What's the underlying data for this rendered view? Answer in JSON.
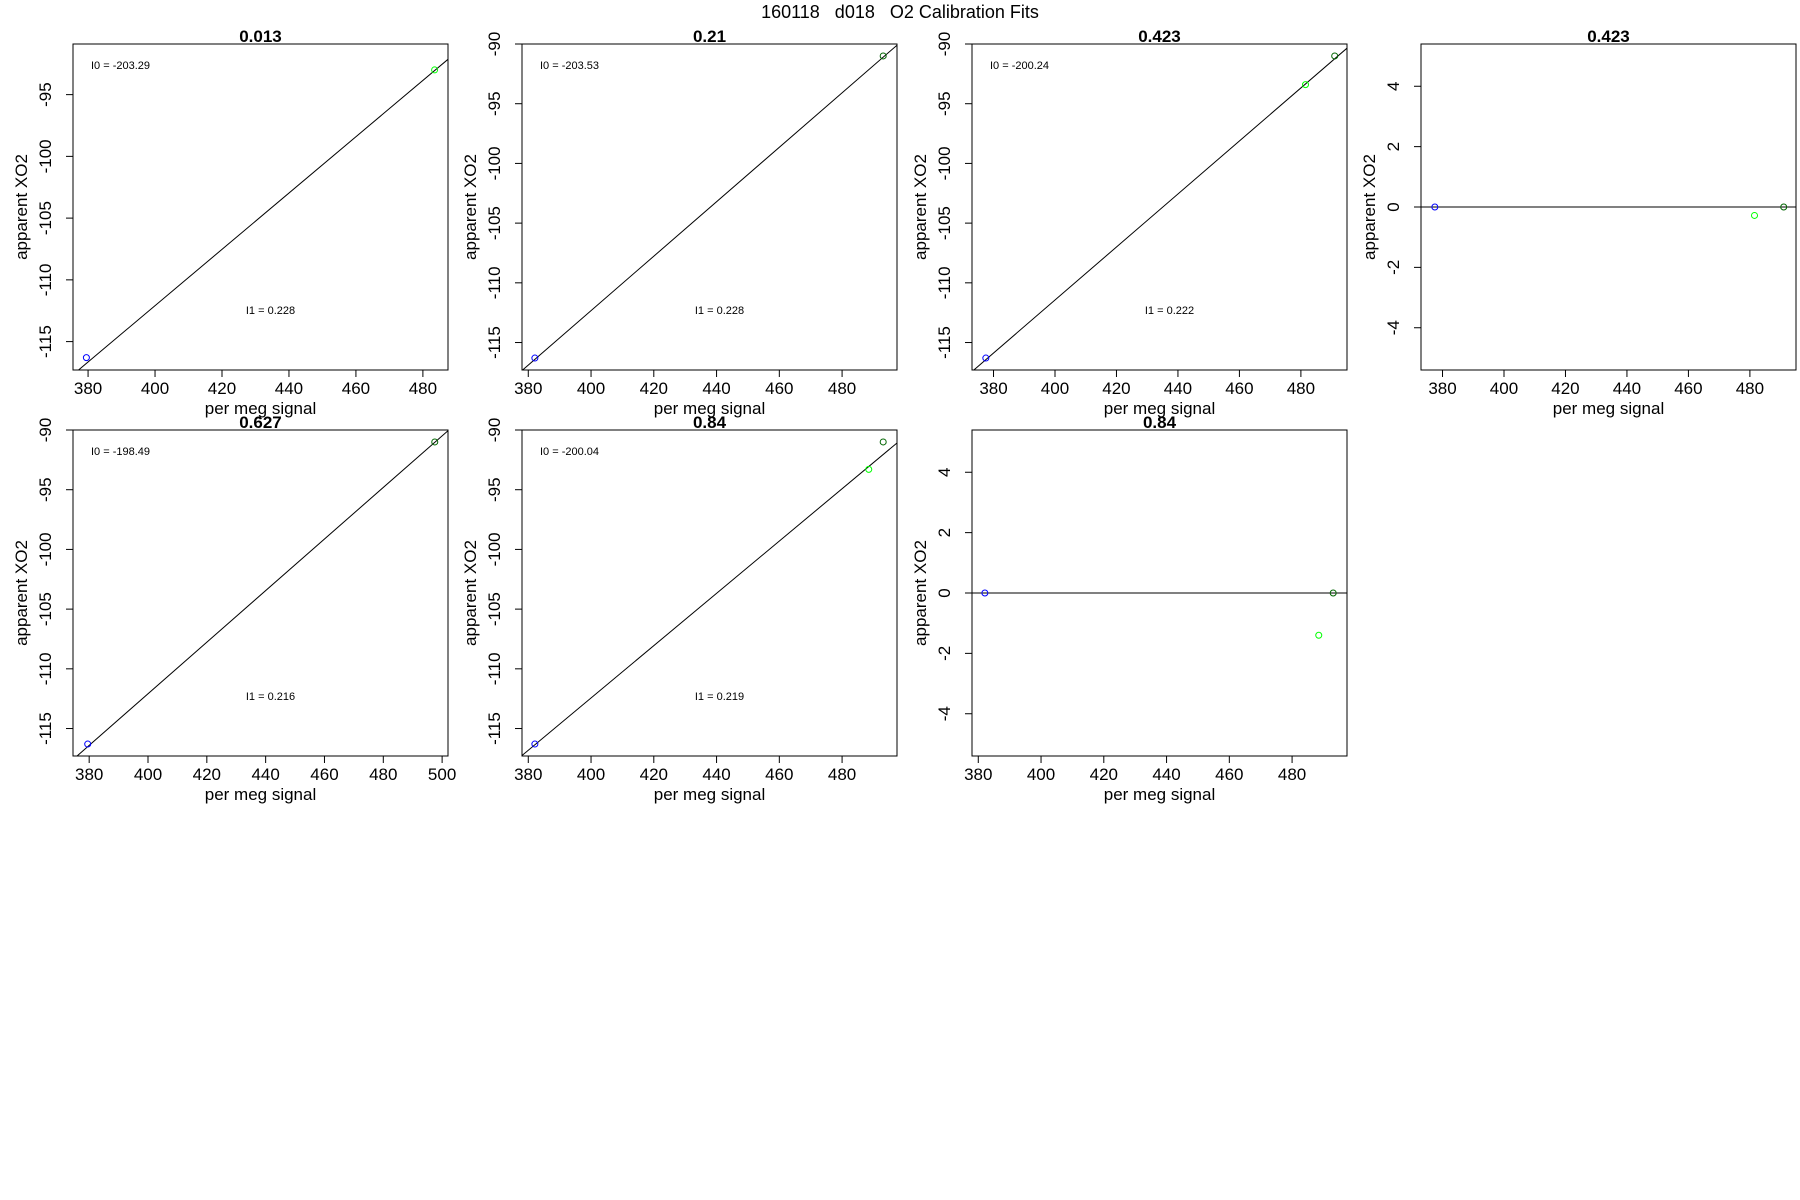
{
  "page": {
    "main_title": "160118   d018   O2 Calibration Fits"
  },
  "colors": {
    "background": "#ffffff",
    "axis": "#000000",
    "fit_line": "#000000",
    "point_blue": "#0000ff",
    "point_green": "#00ff00",
    "point_darkgreen": "#006400"
  },
  "chart_data": [
    {
      "type": "scatter",
      "title": "0.013",
      "xlabel": "per meg signal",
      "ylabel": "apparent XO2",
      "xlim": [
        375.5,
        487.5
      ],
      "ylim": [
        -117.3,
        -90.9
      ],
      "xticks": [
        380,
        400,
        420,
        440,
        460,
        480
      ],
      "yticks": [
        -115,
        -110,
        -105,
        -100,
        -95
      ],
      "fit_line": {
        "slope": 0.228,
        "intercept": -203.29
      },
      "annotations": [
        {
          "text": "I0 =  -203.29"
        },
        {
          "text": "I1 =  0.228"
        }
      ],
      "points": [
        {
          "x": 379.5,
          "y": -116.3,
          "color": "blue"
        },
        {
          "x": 483.5,
          "y": -93.0,
          "color": "green"
        }
      ]
    },
    {
      "type": "scatter",
      "title": "0.21",
      "xlabel": "per meg signal",
      "ylabel": "apparent XO2",
      "xlim": [
        378,
        497.5
      ],
      "ylim": [
        -117.3,
        -90.0
      ],
      "xticks": [
        380,
        400,
        420,
        440,
        460,
        480
      ],
      "yticks": [
        -115,
        -110,
        -105,
        -100,
        -95,
        -90
      ],
      "fit_line": {
        "slope": 0.228,
        "intercept": -203.53
      },
      "annotations": [
        {
          "text": "I0 =  -203.53"
        },
        {
          "text": "I1 =  0.228"
        }
      ],
      "points": [
        {
          "x": 382.1,
          "y": -116.3,
          "color": "blue"
        },
        {
          "x": 493.1,
          "y": -91.0,
          "color": "darkgreen"
        }
      ]
    },
    {
      "type": "scatter",
      "title": "0.423",
      "xlabel": "per meg signal",
      "ylabel": "apparent XO2",
      "xlim": [
        373,
        495
      ],
      "ylim": [
        -117.3,
        -90.0
      ],
      "xticks": [
        380,
        400,
        420,
        440,
        460,
        480
      ],
      "yticks": [
        -115,
        -110,
        -105,
        -100,
        -95,
        -90
      ],
      "fit_line": {
        "slope": 0.222,
        "intercept": -200.24
      },
      "annotations": [
        {
          "text": "I0 =  -200.24"
        },
        {
          "text": "I1 =  0.222"
        }
      ],
      "points": [
        {
          "x": 377.5,
          "y": -116.3,
          "color": "blue"
        },
        {
          "x": 481.5,
          "y": -93.4,
          "color": "green"
        },
        {
          "x": 491.0,
          "y": -91.0,
          "color": "darkgreen"
        }
      ]
    },
    {
      "type": "scatter",
      "title": "0.423",
      "xlabel": "per meg signal",
      "ylabel": "apparent XO2",
      "xlim": [
        373,
        495
      ],
      "ylim": [
        -5.4,
        5.4
      ],
      "xticks": [
        380,
        400,
        420,
        440,
        460,
        480
      ],
      "yticks": [
        -4,
        -2,
        0,
        2,
        4
      ],
      "hline": 0,
      "annotations": [],
      "points": [
        {
          "x": 377.5,
          "y": 0.0,
          "color": "blue"
        },
        {
          "x": 481.5,
          "y": -0.28,
          "color": "green"
        },
        {
          "x": 491.0,
          "y": 0.0,
          "color": "darkgreen"
        }
      ]
    },
    {
      "type": "scatter",
      "title": "0.627",
      "xlabel": "per meg signal",
      "ylabel": "apparent XO2",
      "xlim": [
        374.5,
        502
      ],
      "ylim": [
        -117.3,
        -90.0
      ],
      "xticks": [
        380,
        400,
        420,
        440,
        460,
        480,
        500
      ],
      "yticks": [
        -115,
        -110,
        -105,
        -100,
        -95,
        -90
      ],
      "fit_line": {
        "slope": 0.216,
        "intercept": -198.49
      },
      "annotations": [
        {
          "text": "I0 =  -198.49"
        },
        {
          "text": "I1 =  0.216"
        }
      ],
      "points": [
        {
          "x": 379.5,
          "y": -116.3,
          "color": "blue"
        },
        {
          "x": 497.5,
          "y": -91.0,
          "color": "darkgreen"
        }
      ]
    },
    {
      "type": "scatter",
      "title": "0.84",
      "xlabel": "per meg signal",
      "ylabel": "apparent XO2",
      "xlim": [
        378,
        497.5
      ],
      "ylim": [
        -117.3,
        -90.0
      ],
      "xticks": [
        380,
        400,
        420,
        440,
        460,
        480
      ],
      "yticks": [
        -115,
        -110,
        -105,
        -100,
        -95,
        -90
      ],
      "fit_line": {
        "slope": 0.219,
        "intercept": -200.04
      },
      "annotations": [
        {
          "text": "I0 =  -200.04"
        },
        {
          "text": "I1 =  0.219"
        }
      ],
      "points": [
        {
          "x": 382.1,
          "y": -116.3,
          "color": "blue"
        },
        {
          "x": 488.5,
          "y": -93.3,
          "color": "green"
        },
        {
          "x": 493.1,
          "y": -91.0,
          "color": "darkgreen"
        }
      ]
    },
    {
      "type": "scatter",
      "title": "0.84",
      "xlabel": "per meg signal",
      "ylabel": "apparent XO2",
      "xlim": [
        378,
        497.5
      ],
      "ylim": [
        -5.4,
        5.4
      ],
      "xticks": [
        380,
        400,
        420,
        440,
        460,
        480
      ],
      "yticks": [
        -4,
        -2,
        0,
        2,
        4
      ],
      "hline": 0,
      "annotations": [],
      "points": [
        {
          "x": 382.1,
          "y": 0.0,
          "color": "blue"
        },
        {
          "x": 488.5,
          "y": -1.4,
          "color": "green"
        },
        {
          "x": 493.1,
          "y": 0.0,
          "color": "darkgreen"
        }
      ]
    }
  ]
}
